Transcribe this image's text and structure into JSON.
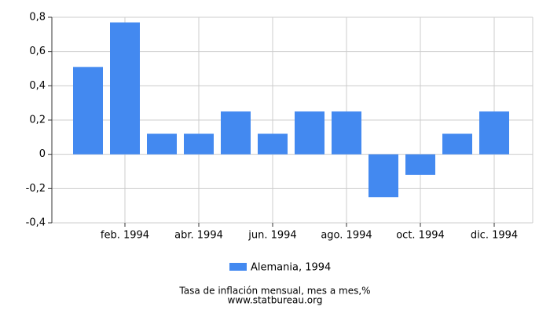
{
  "chart_data": {
    "type": "bar",
    "title": "Tasa de inflación mensual, mes a mes,%",
    "source": "www.statbureau.org",
    "categories": [
      null,
      "feb. 1994",
      null,
      "abr. 1994",
      null,
      "jun. 1994",
      null,
      "ago. 1994",
      null,
      "oct. 1994",
      null,
      "dic. 1994"
    ],
    "series": [
      {
        "name": "Alemania, 1994",
        "color": "#4389f0",
        "values": [
          0.51,
          0.77,
          0.12,
          0.12,
          0.25,
          0.12,
          0.25,
          0.25,
          -0.25,
          -0.12,
          0.12,
          0.25
        ]
      }
    ],
    "ylim": [
      -0.4,
      0.8
    ],
    "yticks": [
      {
        "value": -0.4,
        "label": "-0,4"
      },
      {
        "value": -0.2,
        "label": "-0,2"
      },
      0,
      {
        "value": 0.2,
        "label": "0,2"
      },
      {
        "value": 0.4,
        "label": "0,4"
      },
      {
        "value": 0.6,
        "label": "0,6"
      },
      {
        "value": 0.8,
        "label": "0,8"
      }
    ],
    "grid": true
  }
}
